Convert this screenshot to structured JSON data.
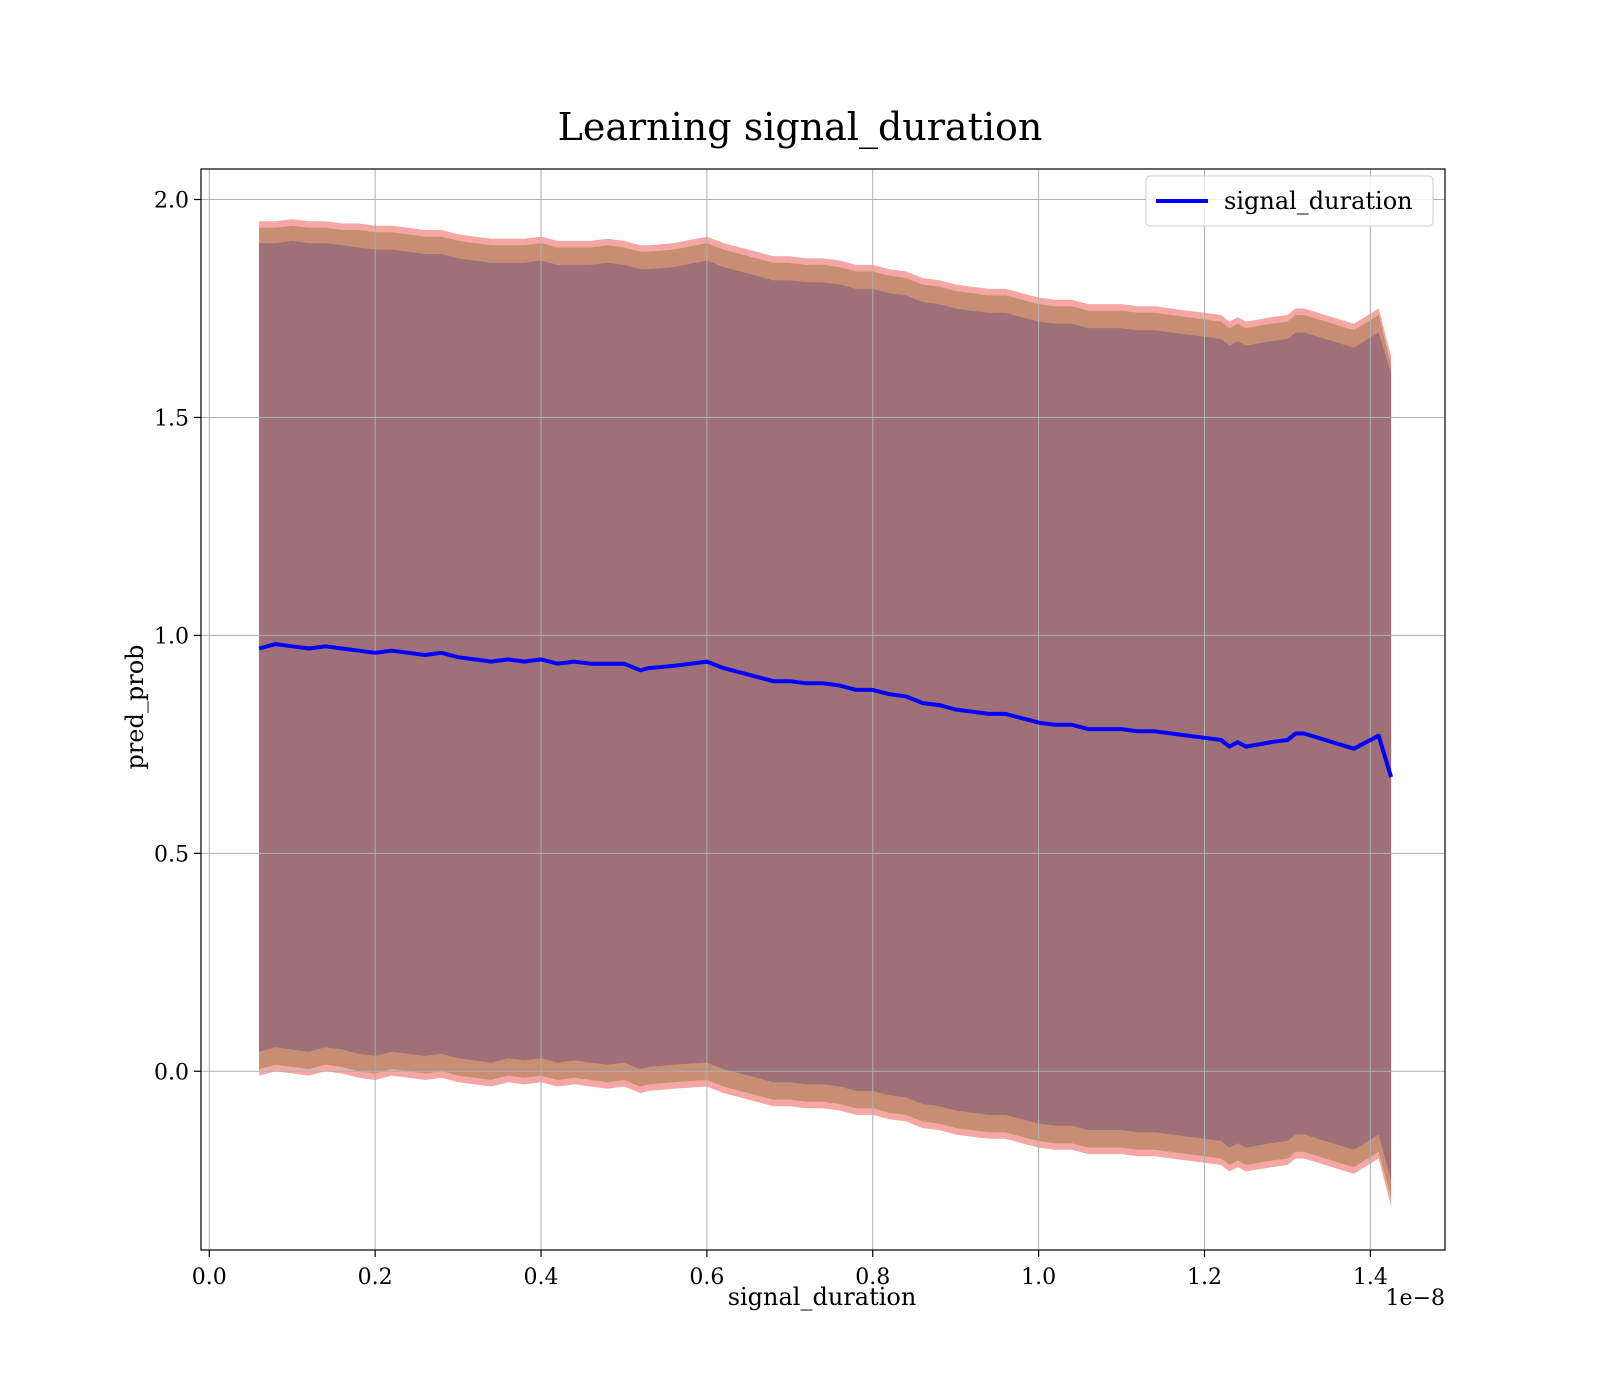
{
  "chart_data": {
    "type": "line",
    "title": "Learning signal_duration",
    "xlabel": "signal_duration",
    "ylabel": "pred_prob",
    "x_offset_text": "1e−8",
    "xlim": [
      -0.01,
      1.49
    ],
    "ylim": [
      -0.41,
      2.07
    ],
    "x_ticks": [
      0.0,
      0.2,
      0.4,
      0.6,
      0.8,
      1.0,
      1.2,
      1.4
    ],
    "x_tick_labels": [
      "0.0",
      "0.2",
      "0.4",
      "0.6",
      "0.8",
      "1.0",
      "1.2",
      "1.4"
    ],
    "y_ticks": [
      0.0,
      0.5,
      1.0,
      1.5,
      2.0
    ],
    "y_tick_labels": [
      "0.0",
      "0.5",
      "1.0",
      "1.5",
      "2.0"
    ],
    "grid": true,
    "legend_position": "top-right",
    "colors": {
      "line": "#0000ff",
      "band_outer": "#f4a7a3",
      "band_middle": "#c88e74",
      "band_inner": "#a07079",
      "grid": "#b0b0b0"
    },
    "series": [
      {
        "name": "signal_duration",
        "x": [
          0.06,
          0.08,
          0.1,
          0.12,
          0.14,
          0.16,
          0.18,
          0.2,
          0.22,
          0.24,
          0.26,
          0.28,
          0.3,
          0.32,
          0.34,
          0.36,
          0.38,
          0.4,
          0.42,
          0.44,
          0.46,
          0.48,
          0.5,
          0.52,
          0.53,
          0.56,
          0.6,
          0.62,
          0.64,
          0.66,
          0.68,
          0.7,
          0.72,
          0.74,
          0.76,
          0.78,
          0.8,
          0.82,
          0.84,
          0.86,
          0.88,
          0.9,
          0.92,
          0.94,
          0.96,
          0.98,
          1.0,
          1.02,
          1.04,
          1.06,
          1.08,
          1.1,
          1.12,
          1.14,
          1.16,
          1.18,
          1.2,
          1.22,
          1.23,
          1.24,
          1.25,
          1.28,
          1.3,
          1.31,
          1.32,
          1.38,
          1.41,
          1.425
        ],
        "y": [
          0.97,
          0.98,
          0.975,
          0.97,
          0.975,
          0.97,
          0.965,
          0.96,
          0.965,
          0.96,
          0.955,
          0.96,
          0.95,
          0.945,
          0.94,
          0.945,
          0.94,
          0.945,
          0.935,
          0.94,
          0.935,
          0.935,
          0.935,
          0.92,
          0.925,
          0.93,
          0.94,
          0.925,
          0.915,
          0.905,
          0.895,
          0.895,
          0.89,
          0.89,
          0.885,
          0.875,
          0.875,
          0.865,
          0.86,
          0.845,
          0.84,
          0.83,
          0.825,
          0.82,
          0.82,
          0.81,
          0.8,
          0.795,
          0.795,
          0.785,
          0.785,
          0.785,
          0.78,
          0.78,
          0.775,
          0.77,
          0.765,
          0.76,
          0.745,
          0.755,
          0.745,
          0.755,
          0.76,
          0.775,
          0.775,
          0.74,
          0.77,
          0.675
        ],
        "bands": [
          {
            "label": "outer",
            "upper": [
              1.95,
              1.95,
              1.955,
              1.95,
              1.95,
              1.945,
              1.945,
              1.94,
              1.94,
              1.935,
              1.93,
              1.93,
              1.92,
              1.915,
              1.91,
              1.91,
              1.91,
              1.915,
              1.905,
              1.905,
              1.905,
              1.91,
              1.905,
              1.895,
              1.895,
              1.9,
              1.915,
              1.9,
              1.89,
              1.88,
              1.87,
              1.87,
              1.865,
              1.865,
              1.86,
              1.85,
              1.85,
              1.84,
              1.835,
              1.82,
              1.815,
              1.805,
              1.8,
              1.795,
              1.795,
              1.785,
              1.775,
              1.77,
              1.77,
              1.76,
              1.76,
              1.76,
              1.755,
              1.755,
              1.75,
              1.745,
              1.74,
              1.735,
              1.72,
              1.73,
              1.72,
              1.73,
              1.735,
              1.75,
              1.75,
              1.715,
              1.75,
              1.64
            ],
            "lower": [
              -0.01,
              0.0,
              -0.005,
              -0.01,
              0.0,
              -0.005,
              -0.015,
              -0.02,
              -0.01,
              -0.015,
              -0.02,
              -0.015,
              -0.025,
              -0.03,
              -0.035,
              -0.025,
              -0.03,
              -0.025,
              -0.035,
              -0.03,
              -0.035,
              -0.04,
              -0.035,
              -0.05,
              -0.045,
              -0.04,
              -0.035,
              -0.05,
              -0.06,
              -0.07,
              -0.08,
              -0.08,
              -0.085,
              -0.085,
              -0.09,
              -0.1,
              -0.1,
              -0.11,
              -0.115,
              -0.13,
              -0.135,
              -0.145,
              -0.15,
              -0.155,
              -0.155,
              -0.165,
              -0.175,
              -0.18,
              -0.18,
              -0.19,
              -0.19,
              -0.19,
              -0.195,
              -0.195,
              -0.2,
              -0.205,
              -0.21,
              -0.215,
              -0.23,
              -0.22,
              -0.23,
              -0.22,
              -0.215,
              -0.2,
              -0.2,
              -0.235,
              -0.2,
              -0.31
            ]
          },
          {
            "label": "middle",
            "upper": [
              1.935,
              1.935,
              1.94,
              1.935,
              1.935,
              1.93,
              1.93,
              1.925,
              1.925,
              1.92,
              1.915,
              1.915,
              1.905,
              1.9,
              1.895,
              1.895,
              1.895,
              1.9,
              1.89,
              1.89,
              1.89,
              1.895,
              1.89,
              1.88,
              1.88,
              1.885,
              1.9,
              1.885,
              1.875,
              1.865,
              1.855,
              1.855,
              1.85,
              1.85,
              1.845,
              1.835,
              1.835,
              1.825,
              1.82,
              1.805,
              1.8,
              1.79,
              1.785,
              1.78,
              1.78,
              1.77,
              1.76,
              1.755,
              1.755,
              1.745,
              1.745,
              1.745,
              1.74,
              1.74,
              1.735,
              1.73,
              1.725,
              1.72,
              1.705,
              1.715,
              1.705,
              1.715,
              1.72,
              1.735,
              1.735,
              1.7,
              1.735,
              1.62
            ],
            "lower": [
              0.005,
              0.015,
              0.01,
              0.005,
              0.015,
              0.01,
              0.0,
              -0.005,
              0.005,
              0.0,
              -0.005,
              0.0,
              -0.01,
              -0.015,
              -0.02,
              -0.01,
              -0.015,
              -0.01,
              -0.02,
              -0.015,
              -0.02,
              -0.025,
              -0.02,
              -0.035,
              -0.03,
              -0.025,
              -0.02,
              -0.035,
              -0.045,
              -0.055,
              -0.065,
              -0.065,
              -0.07,
              -0.07,
              -0.075,
              -0.085,
              -0.085,
              -0.095,
              -0.1,
              -0.115,
              -0.12,
              -0.13,
              -0.135,
              -0.14,
              -0.14,
              -0.15,
              -0.16,
              -0.165,
              -0.165,
              -0.175,
              -0.175,
              -0.175,
              -0.18,
              -0.18,
              -0.185,
              -0.19,
              -0.195,
              -0.2,
              -0.215,
              -0.205,
              -0.215,
              -0.205,
              -0.2,
              -0.185,
              -0.185,
              -0.22,
              -0.185,
              -0.29
            ]
          },
          {
            "label": "inner",
            "upper": [
              1.9,
              1.9,
              1.905,
              1.9,
              1.9,
              1.895,
              1.89,
              1.885,
              1.885,
              1.88,
              1.875,
              1.875,
              1.865,
              1.86,
              1.855,
              1.855,
              1.855,
              1.86,
              1.85,
              1.85,
              1.85,
              1.855,
              1.85,
              1.84,
              1.84,
              1.845,
              1.86,
              1.845,
              1.835,
              1.825,
              1.815,
              1.815,
              1.81,
              1.81,
              1.805,
              1.795,
              1.795,
              1.785,
              1.78,
              1.765,
              1.76,
              1.75,
              1.745,
              1.74,
              1.74,
              1.73,
              1.72,
              1.715,
              1.715,
              1.705,
              1.705,
              1.705,
              1.7,
              1.7,
              1.695,
              1.69,
              1.685,
              1.68,
              1.665,
              1.675,
              1.665,
              1.675,
              1.68,
              1.695,
              1.695,
              1.66,
              1.695,
              1.6
            ],
            "lower": [
              0.045,
              0.055,
              0.05,
              0.045,
              0.055,
              0.05,
              0.04,
              0.035,
              0.045,
              0.04,
              0.035,
              0.04,
              0.03,
              0.025,
              0.02,
              0.03,
              0.025,
              0.03,
              0.02,
              0.025,
              0.02,
              0.015,
              0.02,
              0.005,
              0.01,
              0.015,
              0.02,
              0.005,
              -0.005,
              -0.015,
              -0.025,
              -0.025,
              -0.03,
              -0.03,
              -0.035,
              -0.045,
              -0.045,
              -0.055,
              -0.06,
              -0.075,
              -0.08,
              -0.09,
              -0.095,
              -0.1,
              -0.1,
              -0.11,
              -0.12,
              -0.125,
              -0.125,
              -0.135,
              -0.135,
              -0.135,
              -0.14,
              -0.14,
              -0.145,
              -0.15,
              -0.155,
              -0.16,
              -0.175,
              -0.165,
              -0.175,
              -0.165,
              -0.16,
              -0.145,
              -0.145,
              -0.18,
              -0.145,
              -0.25
            ]
          }
        ]
      }
    ]
  }
}
